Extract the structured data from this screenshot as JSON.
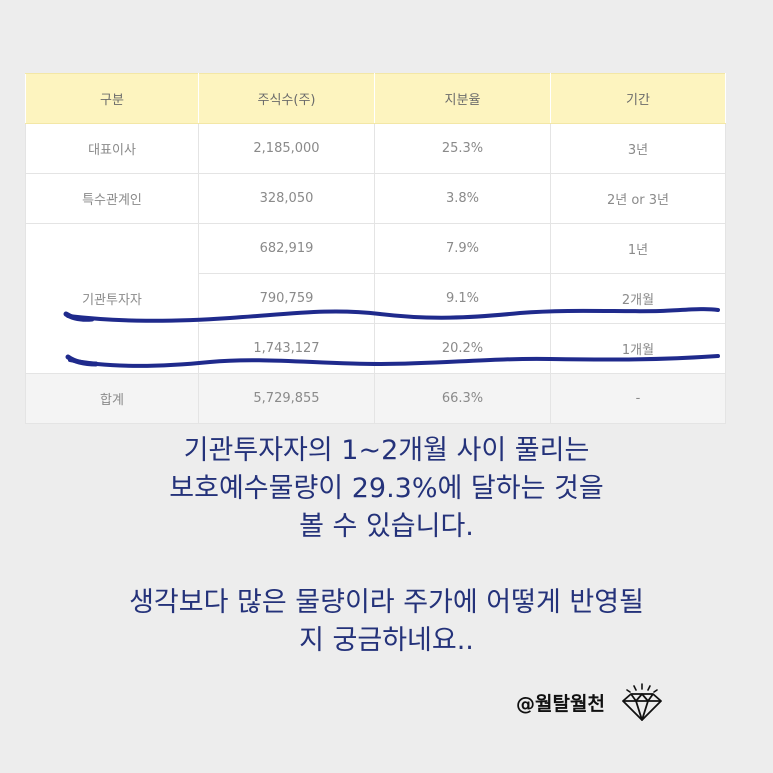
{
  "table": {
    "headers": [
      "구분",
      "주식수(주)",
      "지분율",
      "기간"
    ],
    "rows": [
      {
        "category": "대표이사",
        "shares": "2,185,000",
        "ratio": "25.3%",
        "period": "3년"
      },
      {
        "category": "특수관계인",
        "shares": "328,050",
        "ratio": "3.8%",
        "period": "2년 or 3년"
      },
      {
        "category": "기관투자자",
        "shares": "682,919",
        "ratio": "7.9%",
        "period": "1년"
      },
      {
        "category": "",
        "shares": "790,759",
        "ratio": "9.1%",
        "period": "2개월"
      },
      {
        "category": "",
        "shares": "1,743,127",
        "ratio": "20.2%",
        "period": "1개월"
      }
    ],
    "total": {
      "category": "합계",
      "shares": "5,729,855",
      "ratio": "66.3%",
      "period": "-"
    }
  },
  "caption": {
    "line1": "기관투자자의 1~2개월 사이 풀리는",
    "line2": "보호예수물량이 29.3%에 달하는 것을",
    "line3": "볼 수 있습니다.",
    "line4": "생각보다 많은 물량이라 주가에 어떻게 반영될",
    "line5": "지 궁금하네요.."
  },
  "brand": {
    "handle": "@월탈월천",
    "icon": "diamond-icon"
  },
  "colors": {
    "header_bg": "#fdf4bf",
    "caption_text": "#24327a",
    "underline_stroke": "#1f2a8c",
    "page_bg": "#ededed"
  }
}
